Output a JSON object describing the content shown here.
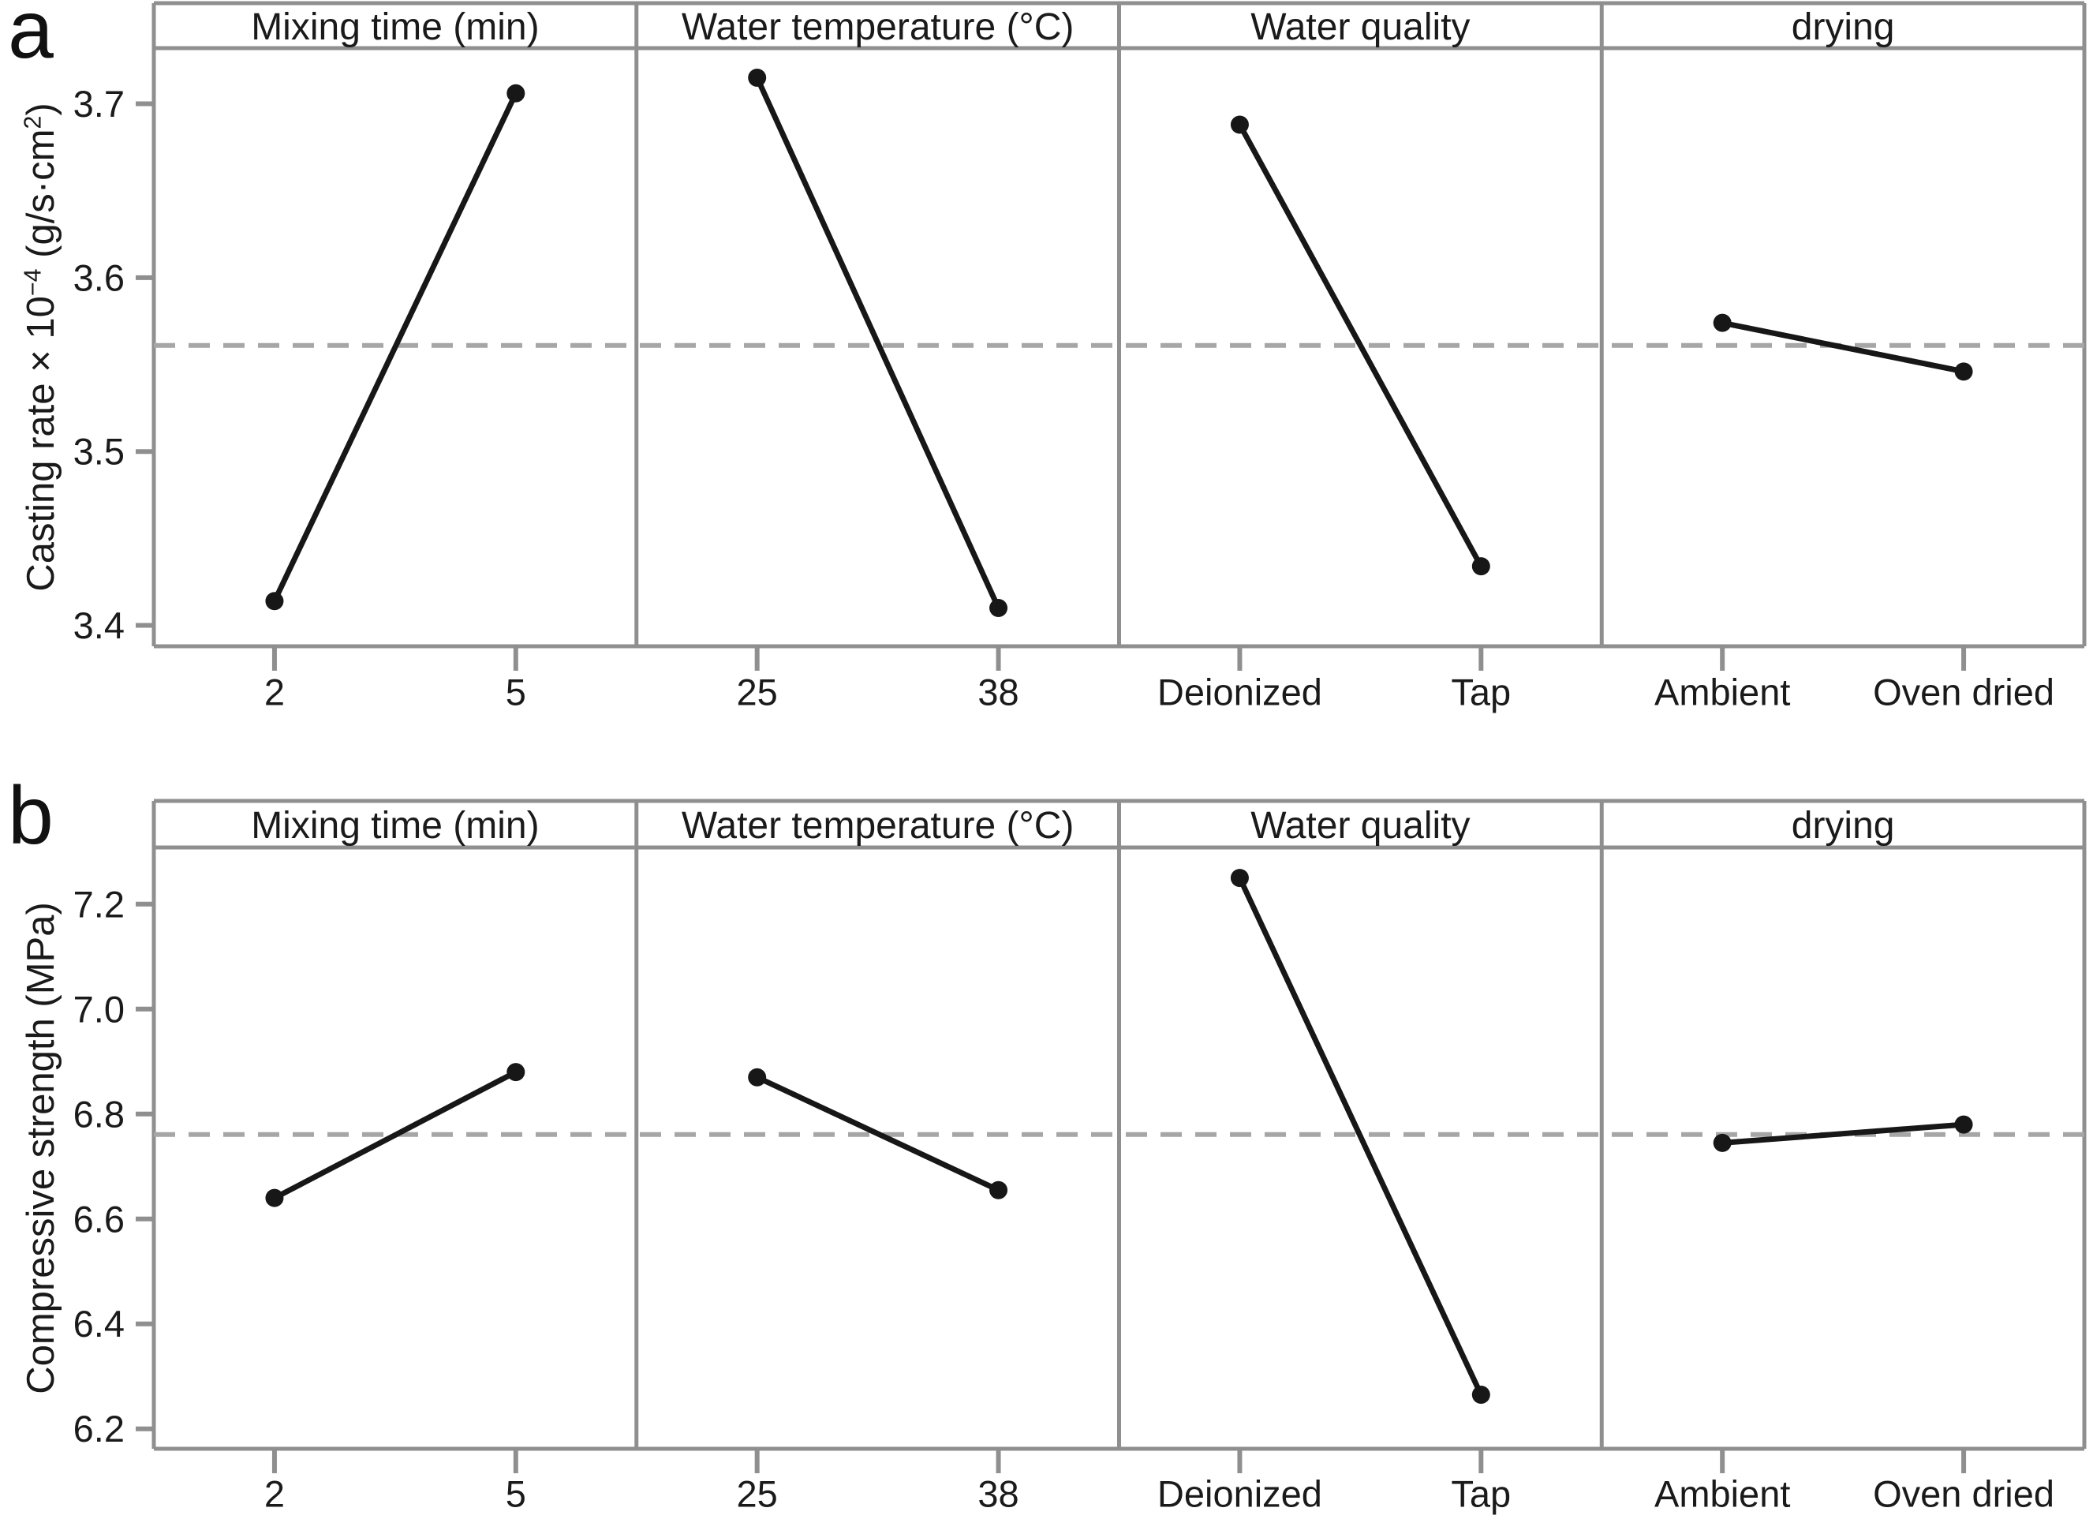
{
  "colors": {
    "axis": "#8f8f8f",
    "mean_dash": "#a6a6a6",
    "data": "#171717",
    "text": "#1a1a1a"
  },
  "chart_data": [
    {
      "type": "line",
      "panel_letter": "a",
      "ylabel": "Casting rate × 10⁻⁴ (g/s·cm²)",
      "ylabel_parts": [
        {
          "text": "Casting rate × 10"
        },
        {
          "text": "−4",
          "sup": true
        },
        {
          "text": " (g/s·cm"
        },
        {
          "text": "2",
          "sup": true
        },
        {
          "text": ")"
        }
      ],
      "ylim": [
        3.388,
        3.732
      ],
      "ytick_labels": [
        "3.4",
        "3.5",
        "3.6",
        "3.7"
      ],
      "mean_line": 3.561,
      "grid": "horizontal-dashed-mean-only",
      "legend": "none",
      "factors": [
        {
          "name": "Mixing time (min)",
          "levels": [
            "2",
            "5"
          ],
          "values": [
            3.414,
            3.706
          ]
        },
        {
          "name": "Water temperature (°C)",
          "levels": [
            "25",
            "38"
          ],
          "values": [
            3.715,
            3.41
          ]
        },
        {
          "name": "Water quality",
          "levels": [
            "Deionized",
            "Tap"
          ],
          "values": [
            3.688,
            3.434
          ]
        },
        {
          "name": "drying",
          "levels": [
            "Ambient",
            "Oven dried"
          ],
          "values": [
            3.574,
            3.546
          ]
        }
      ]
    },
    {
      "type": "line",
      "panel_letter": "b",
      "ylabel": "Compressive strength (MPa)",
      "ylabel_parts": [
        {
          "text": "Compressive strength (MPa)"
        }
      ],
      "ylim": [
        6.162,
        7.308
      ],
      "ytick_labels": [
        "6.2",
        "6.4",
        "6.6",
        "6.8",
        "7.0",
        "7.2"
      ],
      "mean_line": 6.761,
      "grid": "horizontal-dashed-mean-only",
      "legend": "none",
      "factors": [
        {
          "name": "Mixing time (min)",
          "levels": [
            "2",
            "5"
          ],
          "values": [
            6.64,
            6.88
          ]
        },
        {
          "name": "Water temperature (°C)",
          "levels": [
            "25",
            "38"
          ],
          "values": [
            6.87,
            6.655
          ]
        },
        {
          "name": "Water quality",
          "levels": [
            "Deionized",
            "Tap"
          ],
          "values": [
            7.25,
            6.265
          ]
        },
        {
          "name": "drying",
          "levels": [
            "Ambient",
            "Oven dried"
          ],
          "values": [
            6.745,
            6.78
          ]
        }
      ]
    }
  ]
}
